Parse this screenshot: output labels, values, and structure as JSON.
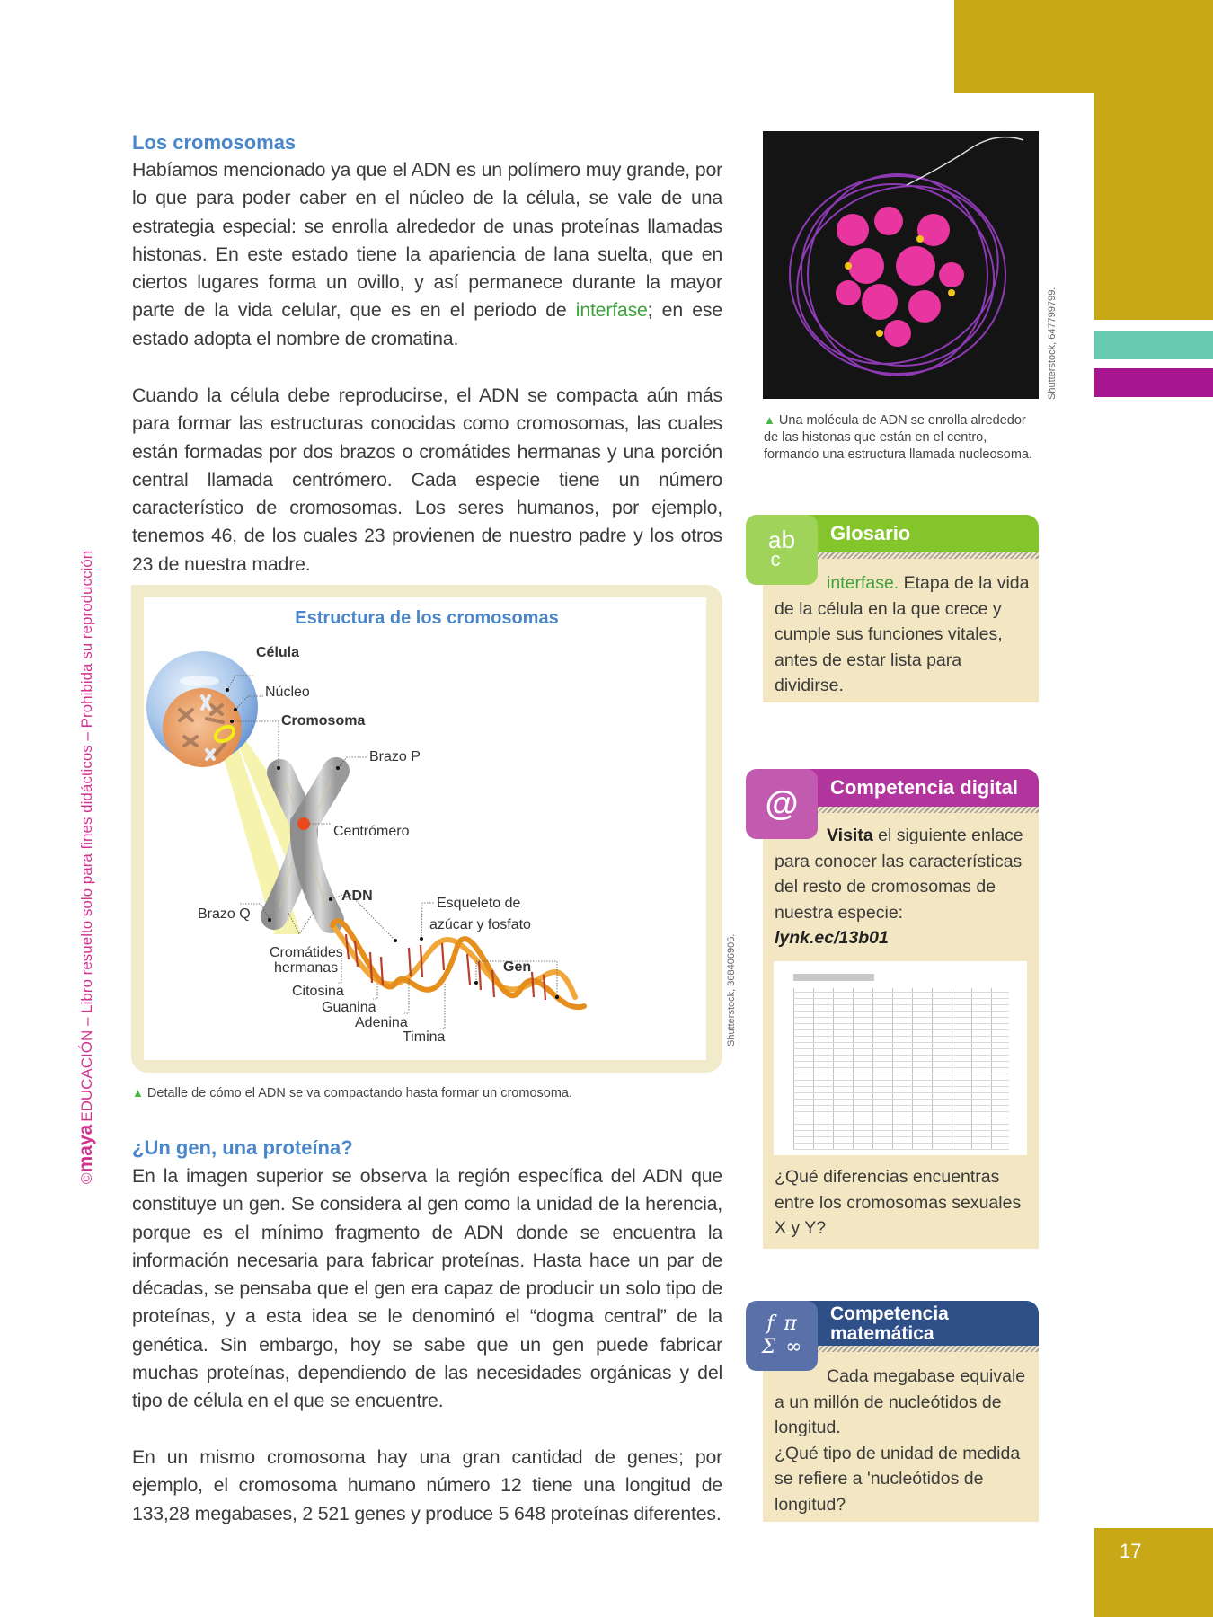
{
  "page_number": "17",
  "side_notice": {
    "brand": "maya",
    "copyright": "©",
    "text": "EDUCACIÓN – Libro resuelto solo para fines didácticos – Prohibida su reproducción"
  },
  "section1": {
    "heading": "Los cromosomas",
    "p1_before": "Habíamos mencionado ya que el ADN es un polímero muy grande, por lo que para poder caber en el núcleo de la célula, se vale de una estrategia especial: se enrolla alrededor de unas proteínas llamadas histonas. En este estado tiene la apariencia de lana suelta, que en ciertos lugares forma un ovillo, y así permanece durante la mayor parte de la vida celular, que es en el periodo de ",
    "p1_link": "interfase",
    "p1_after": "; en ese estado adopta el nombre de cromatina.",
    "p2": "Cuando la célula debe reproducirse, el ADN se compacta aún más para formar las estructuras conocidas como cromosomas, las cuales están formadas por dos brazos o cromátides hermanas y una porción central llamada centrómero. Cada especie tiene un número característico de cromosomas. Los seres humanos, por ejemplo, tenemos 46, de los cuales 23 provienen de nuestro padre y los otros 23 de nuestra madre."
  },
  "diagram": {
    "title": "Estructura de los cromosomas",
    "labels": {
      "celula": "Célula",
      "nucleo": "Núcleo",
      "cromosoma": "Cromosoma",
      "brazo_p": "Brazo P",
      "centromero": "Centrómero",
      "adn": "ADN",
      "esqueleto1": "Esqueleto de",
      "esqueleto2": "azúcar y fosfato",
      "brazo_q": "Brazo Q",
      "cromatides1": "Cromátides",
      "cromatides2": "hermanas",
      "gen": "Gen",
      "citosina": "Citosina",
      "guanina": "Guanina",
      "adenina": "Adenina",
      "timina": "Timina"
    },
    "credit": "Shutterstock, 368406905.",
    "caption": "Detalle de cómo el ADN se va compactando hasta formar un cromosoma."
  },
  "section2": {
    "heading": "¿Un gen, una proteína?",
    "p1": "En la imagen superior se observa la región específica del ADN que constituye un gen. Se considera al gen como la unidad de la herencia, porque es el mínimo fragmento de ADN donde se encuentra la información necesaria para fabricar proteínas. Hasta hace un par de décadas, se pensaba que el gen era capaz de producir un solo tipo de proteínas, y a esta idea se le denominó el “dogma central” de la genética. Sin embargo, hoy se sabe que un gen puede fabricar muchas proteínas, dependiendo de las necesidades orgánicas y del tipo de célula en el que se encuentre.",
    "p2": "En un mismo cromosoma hay una gran cantidad de genes; por ejemplo, el cromosoma humano número 12 tiene una longitud de 133,28 megabases, 2 521 genes y produce 5 648 proteínas diferentes."
  },
  "nucleosome": {
    "credit": "Shutterstock, 647799799.",
    "caption": "Una molécula de ADN se enrolla alrededor de las histonas que están en el centro, formando una estructura llamada nucleosoma."
  },
  "glosario": {
    "title": "Glosario",
    "icon": "abc-icon",
    "term": "interfase.",
    "definition": " Etapa de la vida de la célula en la que crece y cumple sus funciones vitales, antes de estar lista para dividirse."
  },
  "digital": {
    "title": "Competencia digital",
    "icon": "at-icon",
    "lead": "Visita",
    "text": " el siguiente enlace para conocer las características del resto de cromosomas de nuestra especie:",
    "link": "lynk.ec/13b01",
    "question": "¿Qué diferencias encuentras entre los cromosomas sexuales X y Y?"
  },
  "matematica": {
    "title_line1": "Competencia",
    "title_line2": "matemática",
    "icon": "math-symbols-icon",
    "icon_glyphs": "f π Σ ∞",
    "text1": "Cada megabase equivale a un millón de nucleótidos de longitud.",
    "text2": "¿Qué tipo de unidad de medida se refiere a 'nucleótidos de longitud?"
  },
  "colors": {
    "gold": "#c9a818",
    "teal": "#66cbb0",
    "magenta": "#a8168f",
    "heading_blue": "#4a86c8",
    "glossary_green": "#84c52c",
    "digital_magenta": "#b2359e",
    "math_navy": "#2e4f87",
    "box_bg": "#f3e6c3"
  }
}
